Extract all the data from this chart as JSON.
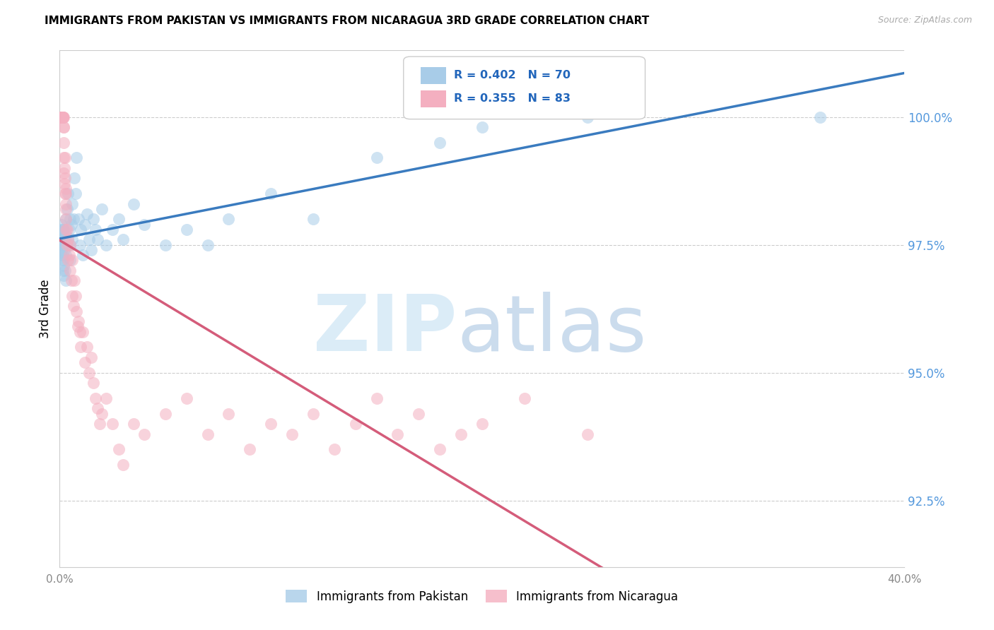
{
  "title": "IMMIGRANTS FROM PAKISTAN VS IMMIGRANTS FROM NICARAGUA 3RD GRADE CORRELATION CHART",
  "source": "Source: ZipAtlas.com",
  "ylabel": "3rd Grade",
  "ytick_labels": [
    "92.5%",
    "95.0%",
    "97.5%",
    "100.0%"
  ],
  "ytick_values": [
    92.5,
    95.0,
    97.5,
    100.0
  ],
  "xlim": [
    0.0,
    40.0
  ],
  "ylim": [
    91.2,
    101.3
  ],
  "legend_label_blue": "Immigrants from Pakistan",
  "legend_label_pink": "Immigrants from Nicaragua",
  "R_blue": 0.402,
  "N_blue": 70,
  "R_pink": 0.355,
  "N_pink": 83,
  "color_blue": "#a8cce8",
  "color_pink": "#f4afc0",
  "color_blue_line": "#3a7bbf",
  "color_pink_line": "#d45c7a",
  "pakistan_x": [
    0.05,
    0.05,
    0.08,
    0.08,
    0.1,
    0.1,
    0.1,
    0.1,
    0.12,
    0.12,
    0.15,
    0.15,
    0.15,
    0.18,
    0.18,
    0.2,
    0.2,
    0.2,
    0.2,
    0.22,
    0.25,
    0.25,
    0.28,
    0.3,
    0.3,
    0.3,
    0.35,
    0.35,
    0.4,
    0.4,
    0.45,
    0.5,
    0.5,
    0.5,
    0.55,
    0.6,
    0.6,
    0.65,
    0.7,
    0.75,
    0.8,
    0.9,
    0.95,
    1.0,
    1.1,
    1.2,
    1.3,
    1.4,
    1.5,
    1.6,
    1.7,
    1.8,
    2.0,
    2.2,
    2.5,
    2.8,
    3.0,
    3.5,
    4.0,
    5.0,
    6.0,
    7.0,
    8.0,
    10.0,
    12.0,
    15.0,
    18.0,
    20.0,
    25.0,
    36.0
  ],
  "pakistan_y": [
    97.6,
    97.8,
    97.5,
    97.9,
    97.3,
    97.4,
    97.6,
    97.7,
    97.2,
    97.5,
    97.0,
    97.3,
    97.8,
    97.1,
    97.6,
    96.9,
    97.2,
    97.5,
    97.8,
    97.4,
    97.0,
    97.6,
    98.0,
    96.8,
    97.3,
    97.7,
    97.5,
    98.2,
    97.6,
    98.5,
    97.8,
    97.2,
    97.5,
    98.0,
    97.9,
    97.6,
    98.3,
    98.0,
    98.8,
    98.5,
    99.2,
    98.0,
    97.5,
    97.8,
    97.3,
    97.9,
    98.1,
    97.6,
    97.4,
    98.0,
    97.8,
    97.6,
    98.2,
    97.5,
    97.8,
    98.0,
    97.6,
    98.3,
    97.9,
    97.5,
    97.8,
    97.5,
    98.0,
    98.5,
    98.0,
    99.2,
    99.5,
    99.8,
    100.0,
    100.0
  ],
  "nicaragua_x": [
    0.05,
    0.05,
    0.08,
    0.08,
    0.1,
    0.1,
    0.1,
    0.12,
    0.12,
    0.15,
    0.15,
    0.15,
    0.15,
    0.15,
    0.18,
    0.18,
    0.2,
    0.2,
    0.2,
    0.2,
    0.22,
    0.22,
    0.25,
    0.25,
    0.25,
    0.28,
    0.28,
    0.3,
    0.3,
    0.3,
    0.3,
    0.35,
    0.35,
    0.4,
    0.4,
    0.45,
    0.5,
    0.5,
    0.55,
    0.6,
    0.6,
    0.65,
    0.7,
    0.75,
    0.8,
    0.85,
    0.9,
    0.95,
    1.0,
    1.1,
    1.2,
    1.3,
    1.4,
    1.5,
    1.6,
    1.7,
    1.8,
    1.9,
    2.0,
    2.2,
    2.5,
    2.8,
    3.0,
    3.5,
    4.0,
    5.0,
    6.0,
    7.0,
    8.0,
    9.0,
    10.0,
    11.0,
    12.0,
    13.0,
    14.0,
    15.0,
    16.0,
    17.0,
    18.0,
    19.0,
    20.0,
    22.0,
    25.0
  ],
  "nicaragua_y": [
    100.0,
    100.0,
    100.0,
    100.0,
    100.0,
    100.0,
    100.0,
    100.0,
    100.0,
    100.0,
    100.0,
    100.0,
    100.0,
    100.0,
    100.0,
    99.8,
    99.8,
    99.5,
    99.2,
    98.9,
    99.0,
    98.7,
    98.5,
    98.8,
    99.2,
    98.2,
    98.5,
    97.8,
    98.0,
    98.3,
    98.6,
    97.5,
    97.8,
    97.2,
    97.6,
    97.3,
    97.0,
    97.5,
    96.8,
    96.5,
    97.2,
    96.3,
    96.8,
    96.5,
    96.2,
    95.9,
    96.0,
    95.8,
    95.5,
    95.8,
    95.2,
    95.5,
    95.0,
    95.3,
    94.8,
    94.5,
    94.3,
    94.0,
    94.2,
    94.5,
    94.0,
    93.5,
    93.2,
    94.0,
    93.8,
    94.2,
    94.5,
    93.8,
    94.2,
    93.5,
    94.0,
    93.8,
    94.2,
    93.5,
    94.0,
    94.5,
    93.8,
    94.2,
    93.5,
    93.8,
    94.0,
    94.5,
    93.8
  ]
}
